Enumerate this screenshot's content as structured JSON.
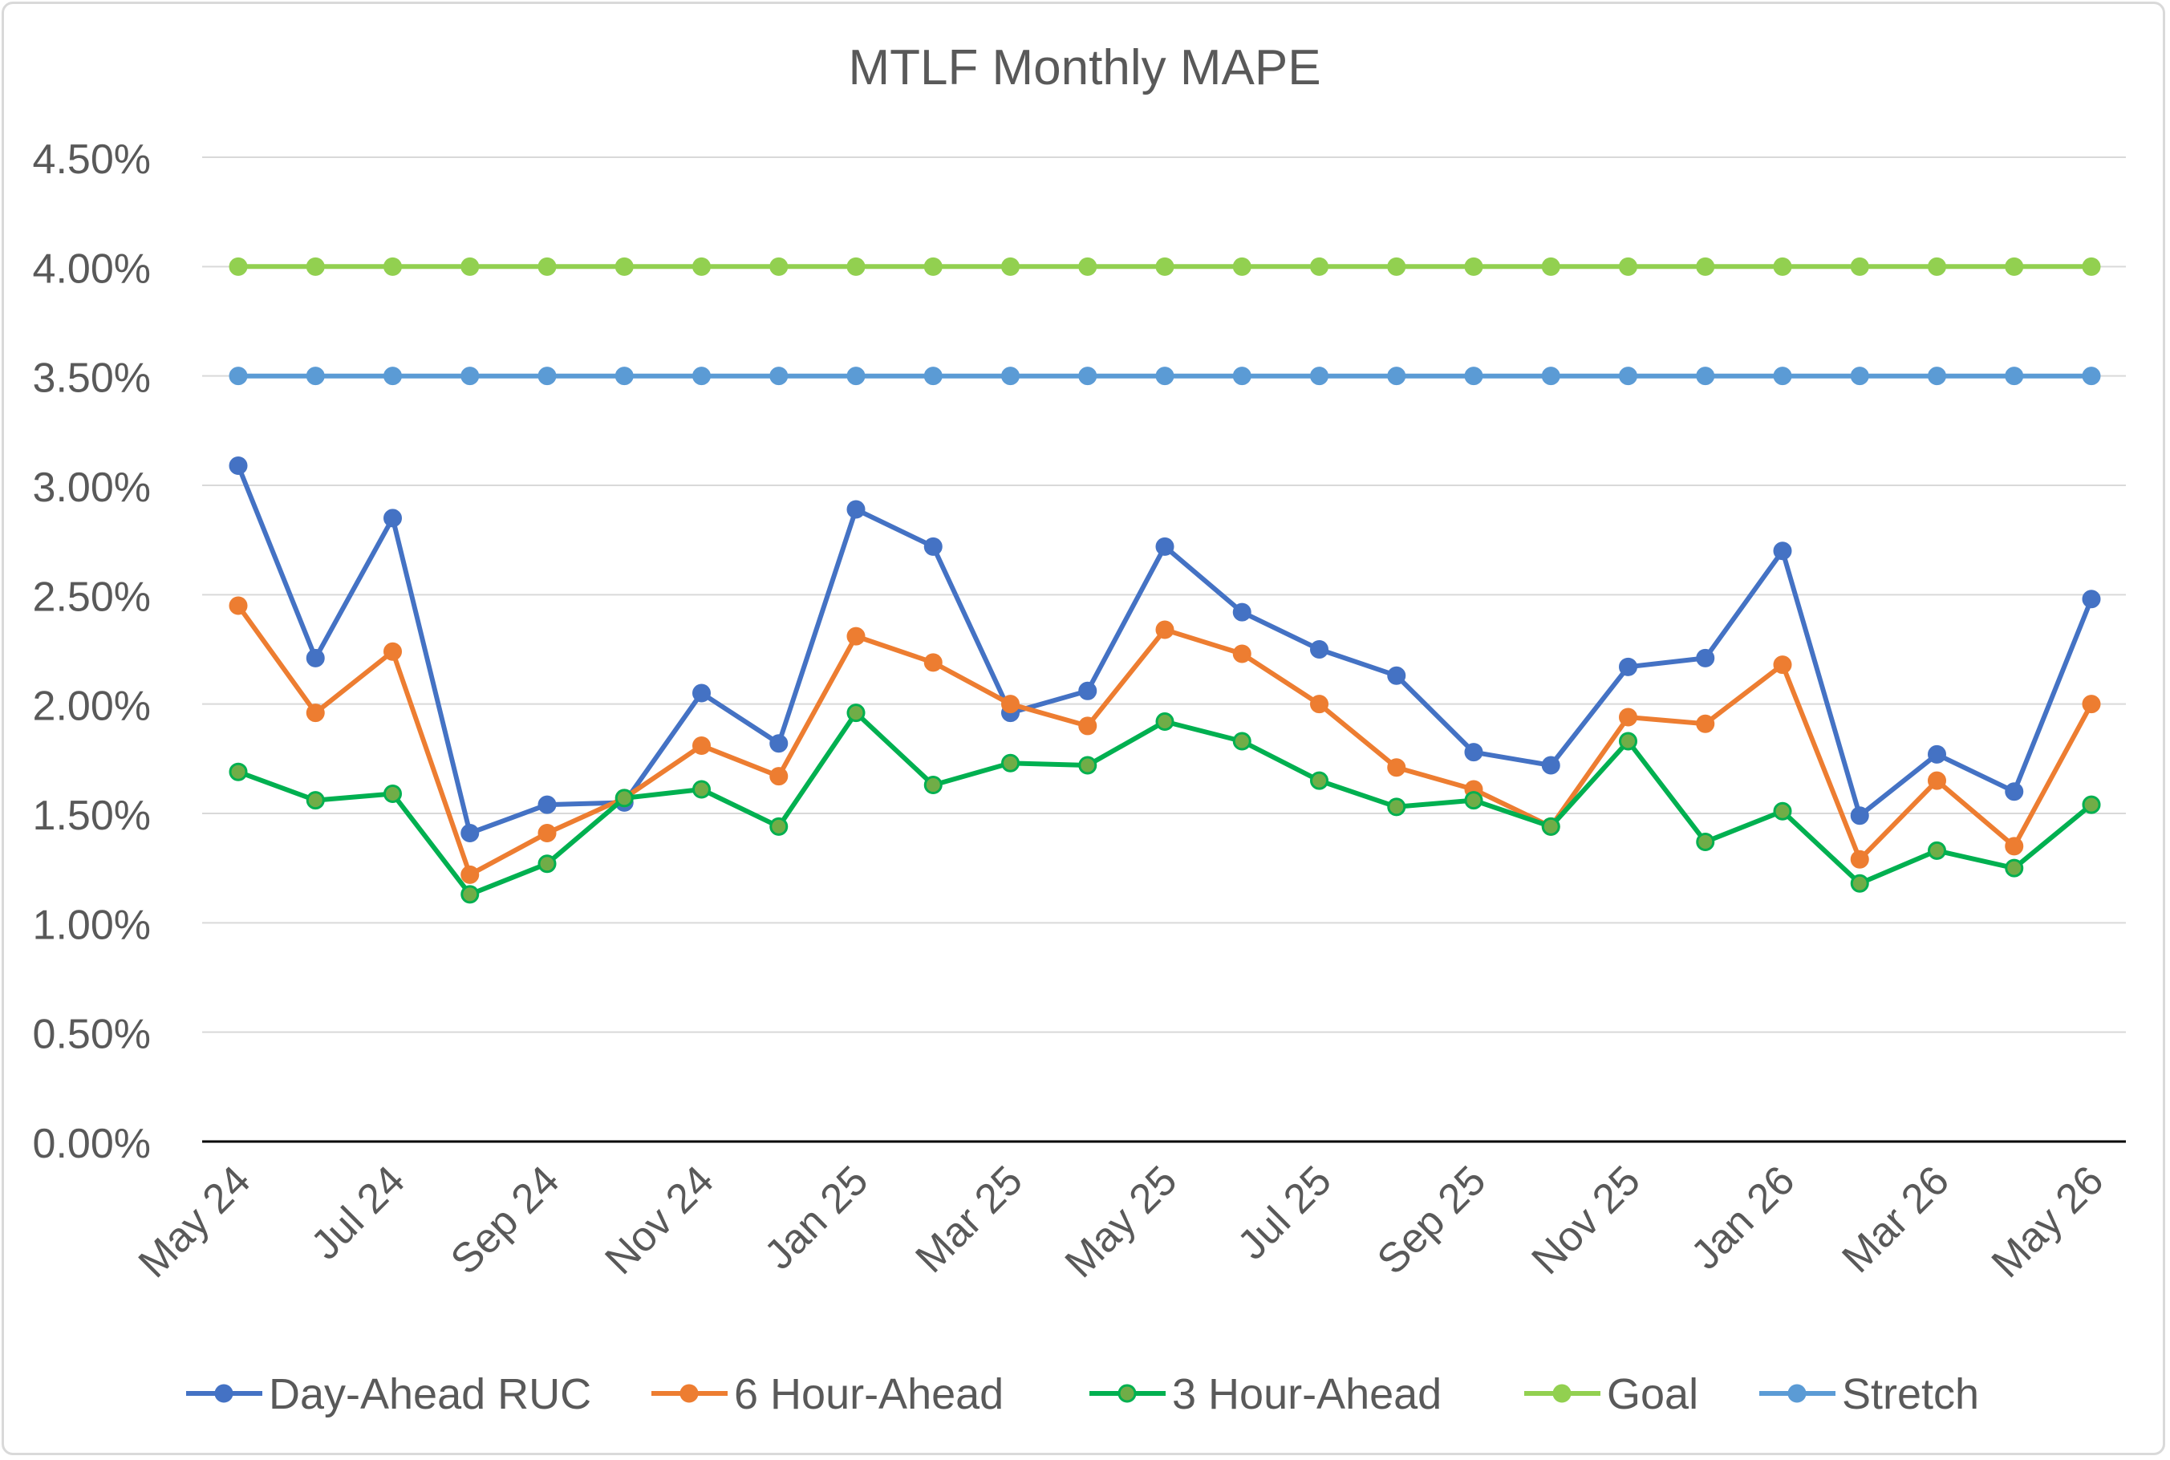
{
  "chart_data": {
    "type": "line",
    "title": "MTLF Monthly MAPE",
    "xlabel": "",
    "ylabel": "",
    "ylim": [
      0,
      0.045
    ],
    "y_tick_values": [
      0,
      0.005,
      0.01,
      0.015,
      0.02,
      0.025,
      0.03,
      0.035,
      0.04,
      0.045
    ],
    "y_tick_labels": [
      "0.00%",
      "0.50%",
      "1.00%",
      "1.50%",
      "2.00%",
      "2.50%",
      "3.00%",
      "3.50%",
      "4.00%",
      "4.50%"
    ],
    "categories": [
      "May 24",
      "Jun 24",
      "Jul 24",
      "Aug 24",
      "Sep 24",
      "Oct 24",
      "Nov 24",
      "Dec 24",
      "Jan 25",
      "Feb 25",
      "Mar 25",
      "Apr 25",
      "May 25",
      "Jun 25",
      "Jul 25",
      "Aug 25",
      "Sep 25",
      "Oct 25",
      "Nov 25",
      "Dec 25",
      "Jan 26",
      "Feb 26",
      "Mar 26",
      "Apr 26",
      "May 26"
    ],
    "x_tick_labels": [
      "May 24",
      "Jul 24",
      "Sep 24",
      "Nov 24",
      "Jan 25",
      "Mar 25",
      "May 25",
      "Jul 25",
      "Sep 25",
      "Nov 25",
      "Jan 26",
      "Mar 26",
      "May 26"
    ],
    "grid": true,
    "legend_position": "bottom",
    "series": [
      {
        "name": "Day-Ahead RUC",
        "color": "#4472c4",
        "marker_fill": "#4472c4",
        "values": [
          0.0309,
          0.0221,
          0.0285,
          0.0141,
          0.0154,
          0.0155,
          0.0205,
          0.0182,
          0.0289,
          0.0272,
          0.0196,
          0.0206,
          0.0272,
          0.0242,
          0.0225,
          0.0213,
          0.0178,
          0.0172,
          0.0217,
          0.0221,
          0.027,
          0.0149,
          0.0177,
          0.016,
          0.0248
        ]
      },
      {
        "name": "6 Hour-Ahead",
        "color": "#ed7d31",
        "marker_fill": "#ed7d31",
        "values": [
          0.0245,
          0.0196,
          0.0224,
          0.0122,
          0.0141,
          0.0157,
          0.0181,
          0.0167,
          0.0231,
          0.0219,
          0.02,
          0.019,
          0.0234,
          0.0223,
          0.02,
          0.0171,
          0.0161,
          0.0144,
          0.0194,
          0.0191,
          0.0218,
          0.0129,
          0.0165,
          0.0135,
          0.02
        ]
      },
      {
        "name": "3 Hour-Ahead",
        "color": "#00b050",
        "marker_fill": "#70ad47",
        "values": [
          0.0169,
          0.0156,
          0.0159,
          0.0113,
          0.0127,
          0.0157,
          0.0161,
          0.0144,
          0.0196,
          0.0163,
          0.0173,
          0.0172,
          0.0192,
          0.0183,
          0.0165,
          0.0153,
          0.0156,
          0.0144,
          0.0183,
          0.0137,
          0.0151,
          0.0118,
          0.0133,
          0.0125,
          0.0154
        ]
      },
      {
        "name": "Goal",
        "color": "#92d050",
        "marker_fill": "#92d050",
        "values": [
          0.04,
          0.04,
          0.04,
          0.04,
          0.04,
          0.04,
          0.04,
          0.04,
          0.04,
          0.04,
          0.04,
          0.04,
          0.04,
          0.04,
          0.04,
          0.04,
          0.04,
          0.04,
          0.04,
          0.04,
          0.04,
          0.04,
          0.04,
          0.04,
          0.04
        ]
      },
      {
        "name": "Stretch",
        "color": "#5b9bd5",
        "marker_fill": "#5b9bd5",
        "values": [
          0.035,
          0.035,
          0.035,
          0.035,
          0.035,
          0.035,
          0.035,
          0.035,
          0.035,
          0.035,
          0.035,
          0.035,
          0.035,
          0.035,
          0.035,
          0.035,
          0.035,
          0.035,
          0.035,
          0.035,
          0.035,
          0.035,
          0.035,
          0.035,
          0.035
        ]
      }
    ]
  }
}
